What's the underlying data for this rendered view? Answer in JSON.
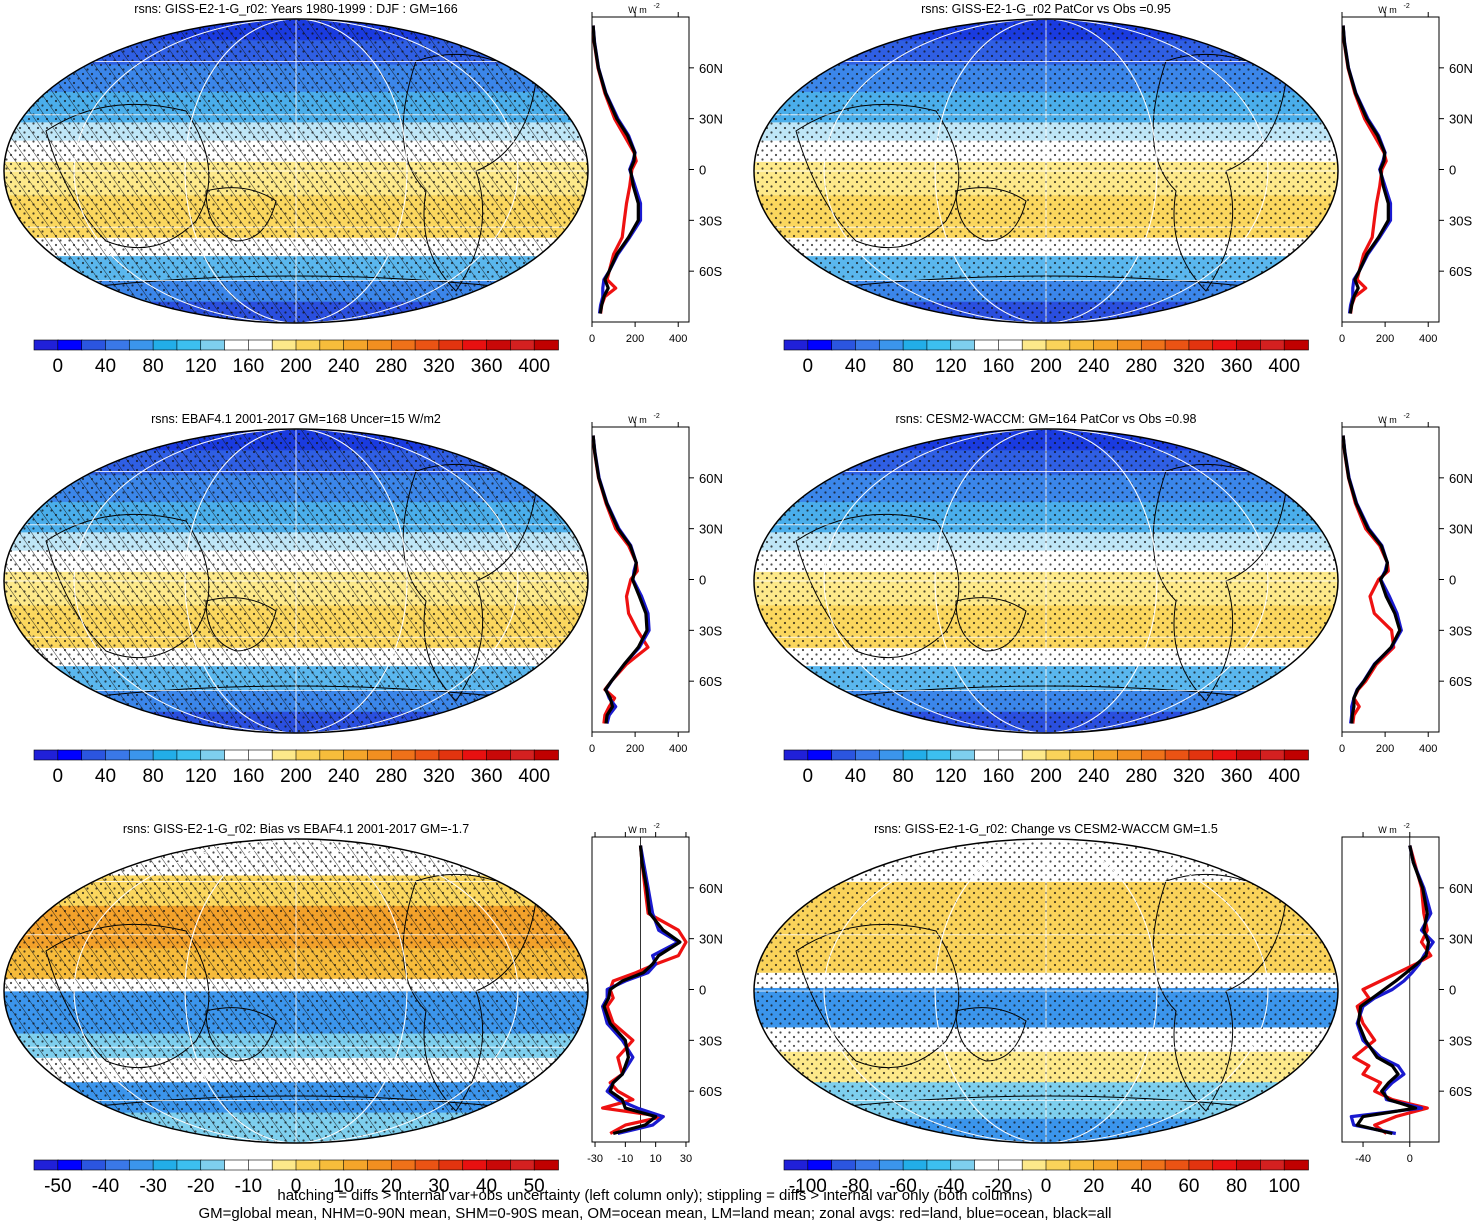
{
  "figure": {
    "footnote_1": "hatching = diffs > internal var+obs uncertainty (left column only); stippling = diffs > internal var only (both columns)",
    "footnote_2": "GM=global mean, NHM=0-90N mean, SHM=0-90S mean, OM=ocean mean, LM=land mean; zonal avgs: red=land, blue=ocean, black=all",
    "zonal_units": "W m-2",
    "zonal_series": [
      "land",
      "ocean",
      "all"
    ],
    "colors": {
      "land": "#ee1111",
      "ocean": "#1a1ad0",
      "all": "#000000"
    }
  },
  "chart_data": [
    {
      "type": "heatmap",
      "title": "rsns: GISS-E2-1-G_r02: Years 1980-1999 : DJF : GM=166",
      "colorbar_ticks": [
        "0",
        "40",
        "80",
        "120",
        "160",
        "200",
        "240",
        "280",
        "320",
        "360",
        "400"
      ],
      "colorbar_range": [
        -20,
        420
      ],
      "palette": "seq",
      "hatched": true,
      "zonal": {
        "xlim": [
          0,
          450
        ],
        "xticks": [
          "0",
          "200",
          "400"
        ],
        "zero_line": false,
        "lat_ticks": [
          "60N",
          "30N",
          "0",
          "30S",
          "60S"
        ],
        "land": {
          "lat": [
            85,
            75,
            60,
            45,
            30,
            20,
            10,
            5,
            0,
            -10,
            -20,
            -30,
            -40,
            -50,
            -60,
            -65,
            -70,
            -75,
            -80,
            -85
          ],
          "x": [
            5,
            10,
            28,
            60,
            105,
            150,
            195,
            205,
            185,
            175,
            160,
            150,
            140,
            100,
            80,
            70,
            110,
            60,
            45,
            40
          ]
        },
        "ocean": {
          "lat": [
            85,
            75,
            60,
            45,
            30,
            20,
            10,
            5,
            0,
            -10,
            -20,
            -30,
            -40,
            -50,
            -60,
            -65,
            -70,
            -75,
            -80,
            -85
          ],
          "x": [
            5,
            12,
            30,
            65,
            120,
            170,
            200,
            190,
            175,
            200,
            225,
            225,
            175,
            120,
            80,
            55,
            50,
            50,
            40,
            35
          ]
        },
        "all": {
          "lat": [
            85,
            75,
            60,
            45,
            30,
            20,
            10,
            5,
            0,
            -10,
            -20,
            -30,
            -40,
            -50,
            -60,
            -65,
            -70,
            -75,
            -80,
            -85
          ],
          "x": [
            5,
            11,
            29,
            63,
            115,
            165,
            198,
            195,
            178,
            192,
            215,
            215,
            170,
            115,
            80,
            60,
            75,
            55,
            45,
            38
          ]
        }
      }
    },
    {
      "type": "heatmap",
      "title": "rsns: GISS-E2-1-G_r02 PatCor vs Obs =0.95",
      "colorbar_ticks": [
        "0",
        "40",
        "80",
        "120",
        "160",
        "200",
        "240",
        "280",
        "320",
        "360",
        "400"
      ],
      "colorbar_range": [
        -20,
        420
      ],
      "palette": "seq",
      "hatched": false,
      "zonal": {
        "xlim": [
          0,
          450
        ],
        "xticks": [
          "0",
          "200",
          "400"
        ],
        "zero_line": false,
        "lat_ticks": [
          "60N",
          "30N",
          "0",
          "30S",
          "60S"
        ],
        "land": {
          "lat": [
            85,
            75,
            60,
            45,
            30,
            20,
            10,
            5,
            0,
            -10,
            -20,
            -30,
            -40,
            -50,
            -60,
            -65,
            -70,
            -75,
            -80,
            -85
          ],
          "x": [
            5,
            10,
            28,
            60,
            105,
            150,
            195,
            205,
            185,
            175,
            160,
            150,
            140,
            100,
            80,
            70,
            110,
            60,
            45,
            40
          ]
        },
        "ocean": {
          "lat": [
            85,
            75,
            60,
            45,
            30,
            20,
            10,
            5,
            0,
            -10,
            -20,
            -30,
            -40,
            -50,
            -60,
            -65,
            -70,
            -75,
            -80,
            -85
          ],
          "x": [
            5,
            12,
            30,
            65,
            120,
            170,
            200,
            190,
            175,
            200,
            225,
            225,
            175,
            120,
            80,
            55,
            50,
            50,
            40,
            35
          ]
        },
        "all": {
          "lat": [
            85,
            75,
            60,
            45,
            30,
            20,
            10,
            5,
            0,
            -10,
            -20,
            -30,
            -40,
            -50,
            -60,
            -65,
            -70,
            -75,
            -80,
            -85
          ],
          "x": [
            5,
            11,
            29,
            63,
            115,
            165,
            198,
            195,
            178,
            192,
            215,
            215,
            170,
            115,
            80,
            60,
            75,
            55,
            45,
            38
          ]
        }
      }
    },
    {
      "type": "heatmap",
      "title": "rsns: EBAF4.1 2001-2017 GM=168 Uncer=15 W/m2",
      "colorbar_ticks": [
        "0",
        "40",
        "80",
        "120",
        "160",
        "200",
        "240",
        "280",
        "320",
        "360",
        "400"
      ],
      "colorbar_range": [
        -20,
        420
      ],
      "palette": "seq",
      "hatched": true,
      "zonal": {
        "xlim": [
          0,
          450
        ],
        "xticks": [
          "0",
          "200",
          "400"
        ],
        "zero_line": false,
        "lat_ticks": [
          "60N",
          "30N",
          "0",
          "30S",
          "60S"
        ],
        "land": {
          "lat": [
            85,
            75,
            60,
            45,
            30,
            20,
            10,
            5,
            0,
            -10,
            -20,
            -30,
            -40,
            -50,
            -60,
            -65,
            -70,
            -75,
            -80,
            -85
          ],
          "x": [
            5,
            12,
            30,
            65,
            110,
            170,
            205,
            210,
            180,
            160,
            170,
            210,
            260,
            160,
            90,
            60,
            105,
            80,
            60,
            55
          ]
        },
        "ocean": {
          "lat": [
            85,
            75,
            60,
            45,
            30,
            20,
            10,
            5,
            0,
            -10,
            -20,
            -30,
            -40,
            -50,
            -60,
            -65,
            -70,
            -75,
            -80,
            -85
          ],
          "x": [
            5,
            14,
            33,
            70,
            125,
            180,
            205,
            195,
            190,
            230,
            260,
            265,
            220,
            150,
            90,
            65,
            80,
            110,
            80,
            70
          ]
        },
        "all": {
          "lat": [
            85,
            75,
            60,
            45,
            30,
            20,
            10,
            5,
            0,
            -10,
            -20,
            -30,
            -40,
            -50,
            -60,
            -65,
            -70,
            -75,
            -80,
            -85
          ],
          "x": [
            5,
            13,
            31,
            68,
            120,
            177,
            205,
            200,
            188,
            220,
            250,
            255,
            215,
            150,
            90,
            62,
            85,
            95,
            70,
            65
          ]
        }
      }
    },
    {
      "type": "heatmap",
      "title": "rsns: CESM2-WACCM: GM=164 PatCor vs Obs =0.98",
      "colorbar_ticks": [
        "0",
        "40",
        "80",
        "120",
        "160",
        "200",
        "240",
        "280",
        "320",
        "360",
        "400"
      ],
      "colorbar_range": [
        -20,
        420
      ],
      "palette": "seq",
      "hatched": false,
      "zonal": {
        "xlim": [
          0,
          450
        ],
        "xticks": [
          "0",
          "200",
          "400"
        ],
        "zero_line": false,
        "lat_ticks": [
          "60N",
          "30N",
          "0",
          "30S",
          "60S"
        ],
        "land": {
          "lat": [
            85,
            75,
            60,
            45,
            30,
            20,
            10,
            5,
            0,
            -10,
            -20,
            -30,
            -40,
            -50,
            -60,
            -65,
            -70,
            -75,
            -80,
            -85
          ],
          "x": [
            5,
            12,
            30,
            62,
            110,
            175,
            210,
            215,
            170,
            130,
            150,
            230,
            240,
            160,
            110,
            75,
            55,
            80,
            55,
            50
          ]
        },
        "ocean": {
          "lat": [
            85,
            75,
            60,
            45,
            30,
            20,
            10,
            5,
            0,
            -10,
            -20,
            -30,
            -40,
            -50,
            -60,
            -65,
            -70,
            -75,
            -80,
            -85
          ],
          "x": [
            5,
            14,
            33,
            68,
            125,
            185,
            210,
            200,
            180,
            220,
            255,
            275,
            230,
            150,
            100,
            70,
            55,
            45,
            45,
            40
          ]
        },
        "all": {
          "lat": [
            85,
            75,
            60,
            45,
            30,
            20,
            10,
            5,
            0,
            -10,
            -20,
            -30,
            -40,
            -50,
            -60,
            -65,
            -70,
            -75,
            -80,
            -85
          ],
          "x": [
            5,
            13,
            31,
            66,
            120,
            182,
            210,
            205,
            178,
            205,
            245,
            268,
            228,
            152,
            102,
            72,
            55,
            55,
            48,
            45
          ]
        }
      }
    },
    {
      "type": "heatmap",
      "title": "rsns: GISS-E2-1-G_r02: Bias vs EBAF4.1 2001-2017 GM=-1.7",
      "colorbar_ticks": [
        "-50",
        "-40",
        "-30",
        "-20",
        "-10",
        "0",
        "10",
        "20",
        "30",
        "40",
        "50"
      ],
      "colorbar_range": [
        -55,
        55
      ],
      "palette": "div",
      "hatched": true,
      "zonal": {
        "xlim": [
          -32,
          32
        ],
        "xticks": [
          "-30",
          "-10",
          "10",
          "30"
        ],
        "zero_line": true,
        "lat_ticks": [
          "60N",
          "30N",
          "0",
          "30S",
          "60S"
        ],
        "land": {
          "lat": [
            85,
            75,
            60,
            45,
            35,
            28,
            20,
            15,
            10,
            5,
            0,
            -5,
            -10,
            -20,
            -30,
            -40,
            -50,
            -55,
            -60,
            -65,
            -70,
            -75,
            -80,
            -85
          ],
          "x": [
            0,
            1,
            3,
            5,
            25,
            30,
            25,
            10,
            -3,
            -18,
            -20,
            -18,
            -22,
            -18,
            -5,
            -15,
            -12,
            -20,
            -15,
            -5,
            -25,
            15,
            -10,
            -20
          ]
        },
        "ocean": {
          "lat": [
            85,
            75,
            60,
            45,
            35,
            28,
            20,
            15,
            10,
            5,
            0,
            -5,
            -10,
            -20,
            -30,
            -40,
            -50,
            -55,
            -60,
            -65,
            -70,
            -75,
            -80,
            -85
          ],
          "x": [
            0,
            2,
            5,
            8,
            12,
            25,
            8,
            10,
            5,
            -10,
            -22,
            -22,
            -25,
            -22,
            -12,
            -5,
            -12,
            -18,
            -22,
            -15,
            -2,
            15,
            8,
            -15
          ]
        },
        "all": {
          "lat": [
            85,
            75,
            60,
            45,
            35,
            28,
            20,
            15,
            10,
            5,
            0,
            -5,
            -10,
            -20,
            -30,
            -40,
            -50,
            -55,
            -60,
            -65,
            -70,
            -75,
            -80,
            -85
          ],
          "x": [
            0,
            1,
            4,
            6,
            15,
            26,
            12,
            8,
            2,
            -12,
            -20,
            -21,
            -24,
            -20,
            -10,
            -8,
            -12,
            -18,
            -20,
            -12,
            -10,
            10,
            3,
            -18
          ]
        }
      }
    },
    {
      "type": "heatmap",
      "title": "rsns: GISS-E2-1-G_r02: Change vs CESM2-WACCM GM=1.5",
      "colorbar_ticks": [
        "-100",
        "-80",
        "-60",
        "-40",
        "-20",
        "0",
        "20",
        "40",
        "60",
        "80",
        "100"
      ],
      "colorbar_range": [
        -110,
        110
      ],
      "palette": "div",
      "hatched": false,
      "zonal": {
        "xlim": [
          -58,
          25
        ],
        "xticks": [
          "-40",
          "0"
        ],
        "zero_line": true,
        "lat_ticks": [
          "60N",
          "30N",
          "0",
          "30S",
          "60S"
        ],
        "land": {
          "lat": [
            85,
            75,
            60,
            45,
            35,
            28,
            20,
            15,
            10,
            5,
            0,
            -5,
            -10,
            -20,
            -30,
            -40,
            -45,
            -50,
            -55,
            -60,
            -65,
            -70,
            -75,
            -80,
            -85
          ],
          "x": [
            0,
            4,
            10,
            12,
            15,
            10,
            18,
            5,
            -10,
            -25,
            -40,
            -35,
            -45,
            -40,
            -30,
            -48,
            -35,
            -40,
            -25,
            -30,
            -15,
            15,
            -12,
            -30,
            -20
          ]
        },
        "ocean": {
          "lat": [
            85,
            75,
            60,
            45,
            35,
            28,
            20,
            15,
            10,
            5,
            0,
            -5,
            -10,
            -20,
            -30,
            -40,
            -45,
            -50,
            -55,
            -60,
            -65,
            -70,
            -75,
            -80,
            -85
          ],
          "x": [
            0,
            3,
            12,
            18,
            10,
            20,
            12,
            8,
            2,
            -5,
            -15,
            -30,
            -40,
            -45,
            -40,
            -25,
            -10,
            -5,
            -15,
            -22,
            -20,
            10,
            -50,
            -48,
            -12
          ]
        },
        "all": {
          "lat": [
            85,
            75,
            60,
            45,
            35,
            28,
            20,
            15,
            10,
            5,
            0,
            -5,
            -10,
            -20,
            -30,
            -40,
            -45,
            -50,
            -55,
            -60,
            -65,
            -70,
            -75,
            -80,
            -85
          ],
          "x": [
            0,
            3,
            11,
            15,
            12,
            16,
            14,
            6,
            -3,
            -12,
            -22,
            -32,
            -42,
            -44,
            -38,
            -28,
            -15,
            -10,
            -18,
            -24,
            -18,
            5,
            -40,
            -45,
            -15
          ]
        }
      }
    }
  ]
}
